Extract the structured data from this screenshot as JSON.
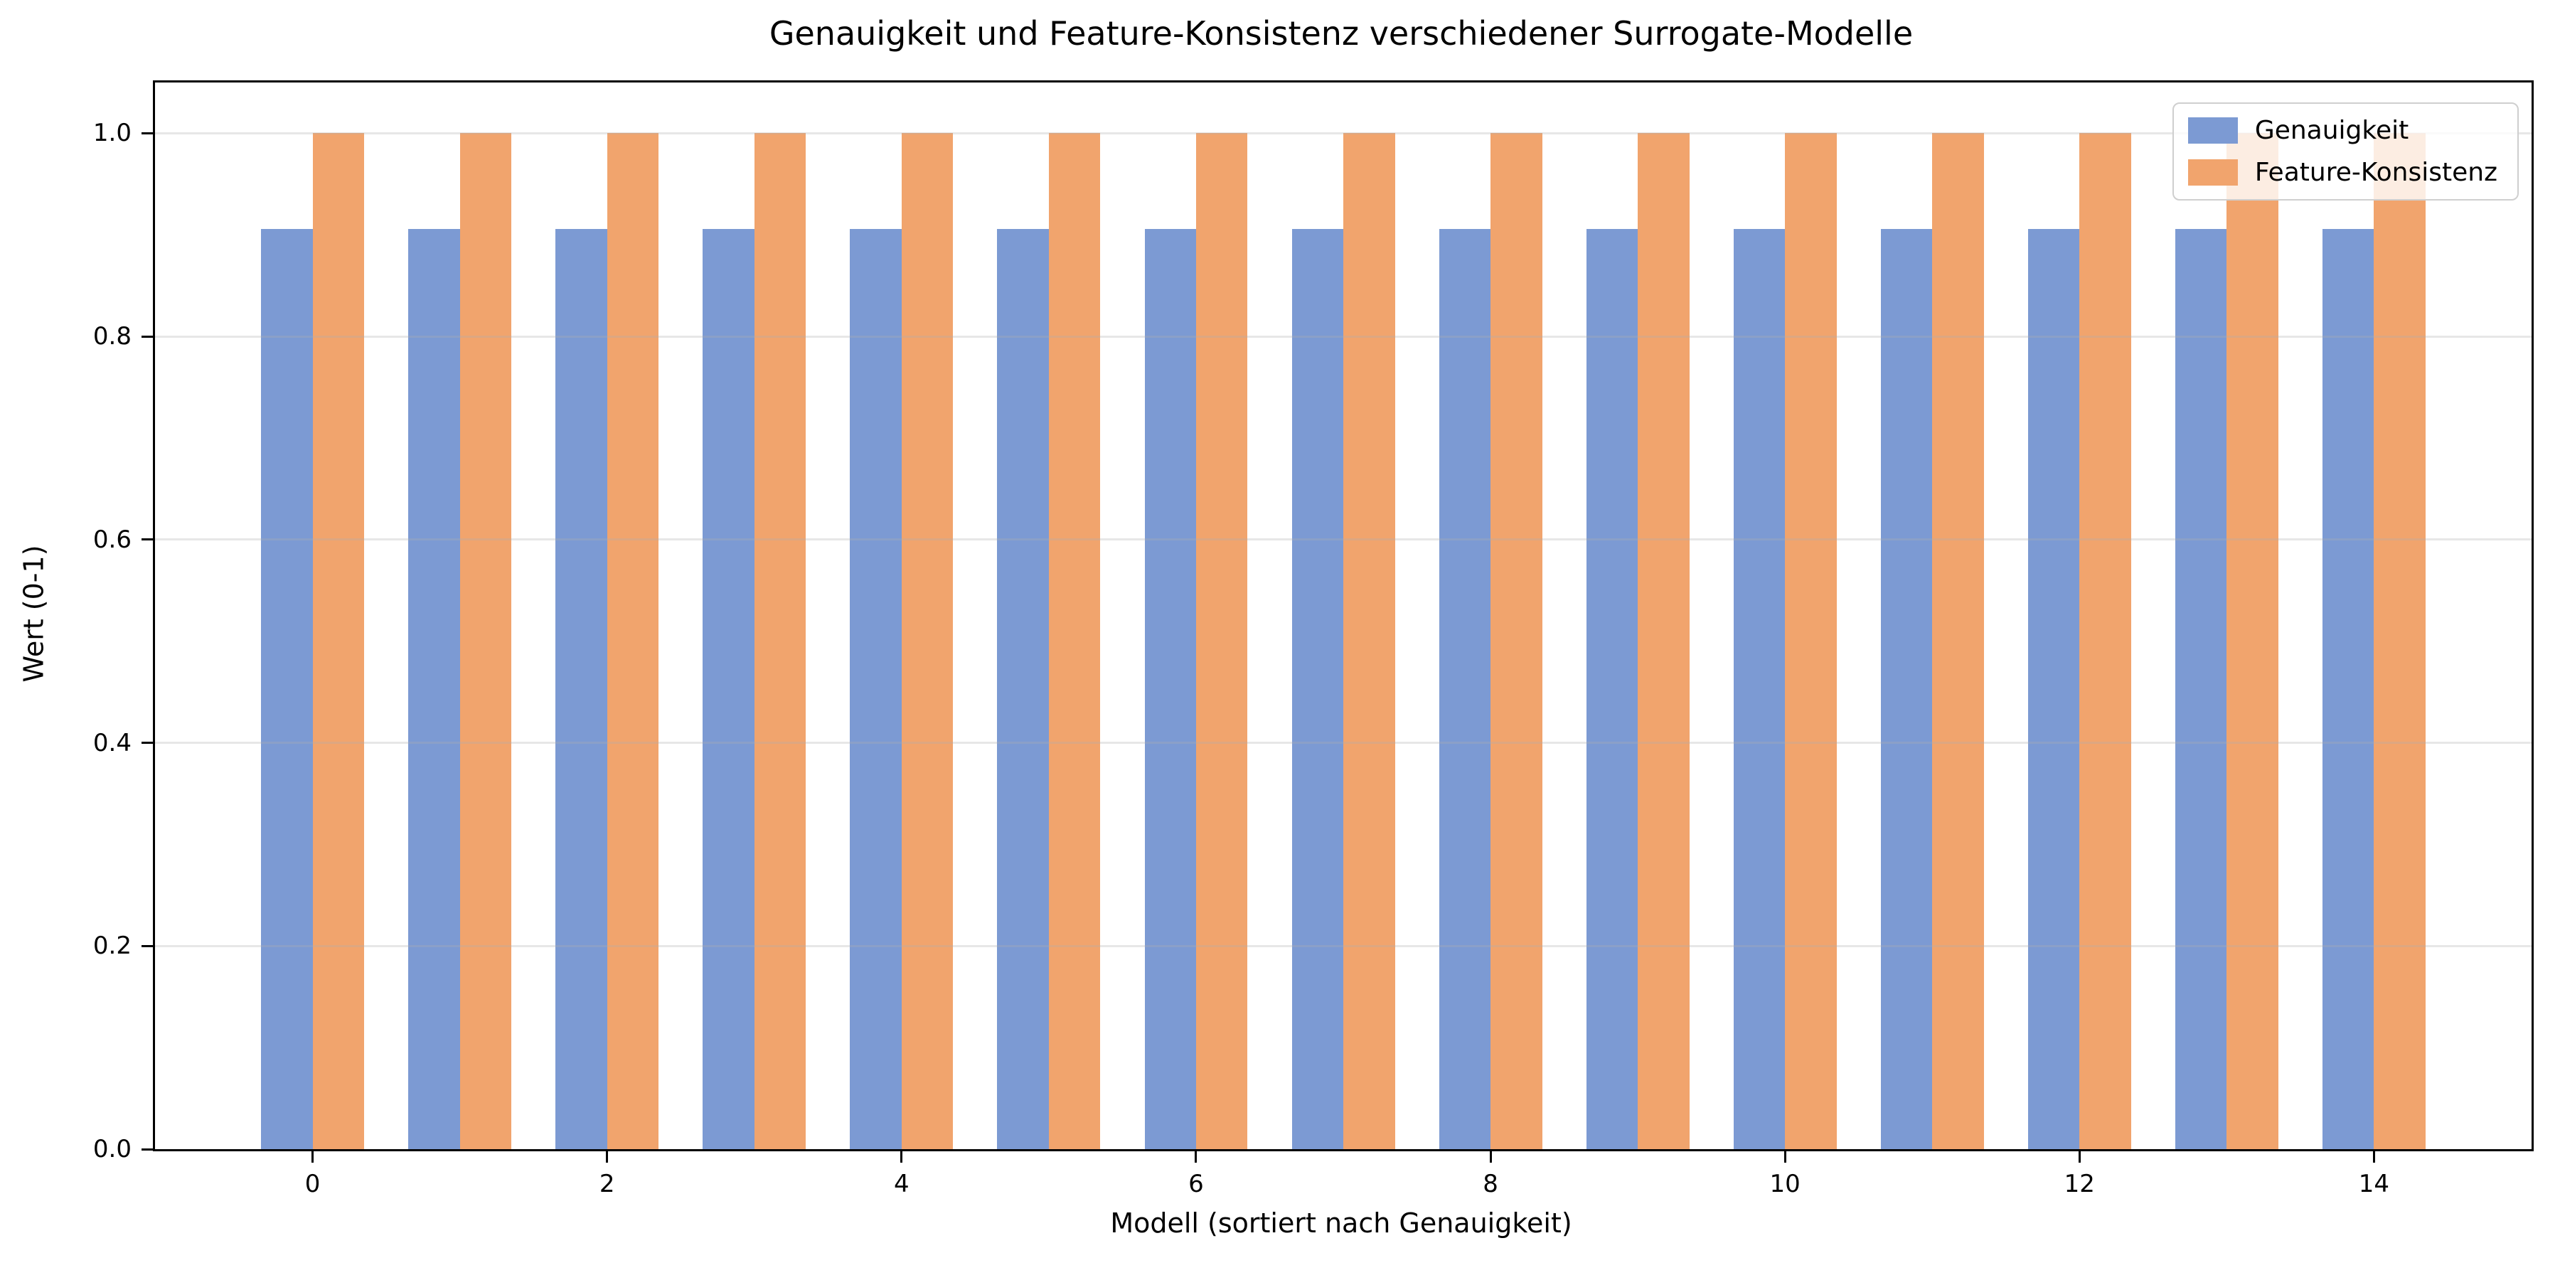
{
  "chart_data": {
    "type": "bar",
    "title": "Genauigkeit und Feature-Konsistenz verschiedener Surrogate-Modelle",
    "xlabel": "Modell (sortiert nach Genauigkeit)",
    "ylabel": "Wert (0-1)",
    "categories": [
      0,
      1,
      2,
      3,
      4,
      5,
      6,
      7,
      8,
      9,
      10,
      11,
      12,
      13,
      14
    ],
    "series": [
      {
        "name": "Genauigkeit",
        "color": "#7C9AD3",
        "values": [
          0.906,
          0.906,
          0.906,
          0.906,
          0.906,
          0.906,
          0.906,
          0.906,
          0.906,
          0.906,
          0.906,
          0.906,
          0.906,
          0.906,
          0.906
        ]
      },
      {
        "name": "Feature-Konsistenz",
        "color": "#F1A46D",
        "values": [
          1.0,
          1.0,
          1.0,
          1.0,
          1.0,
          1.0,
          1.0,
          1.0,
          1.0,
          1.0,
          1.0,
          1.0,
          1.0,
          1.0,
          1.0
        ]
      }
    ],
    "bar_width": 0.35,
    "xlim": [
      -1.07,
      15.07
    ],
    "ylim": [
      0,
      1.05
    ],
    "xticks": [
      0,
      2,
      4,
      6,
      8,
      10,
      12,
      14
    ],
    "yticks": [
      0.0,
      0.2,
      0.4,
      0.6,
      0.8,
      1.0
    ],
    "grid": {
      "axis": "y",
      "color": "#b0b0b0",
      "alpha": 0.3,
      "drawn_over_bars": true
    },
    "legend_position": "upper right",
    "colors": {
      "spine": "#000000",
      "tick": "#000000",
      "legend_border": "#cfcfcf",
      "legend_background": "rgba(255,255,255,0.8)"
    }
  }
}
